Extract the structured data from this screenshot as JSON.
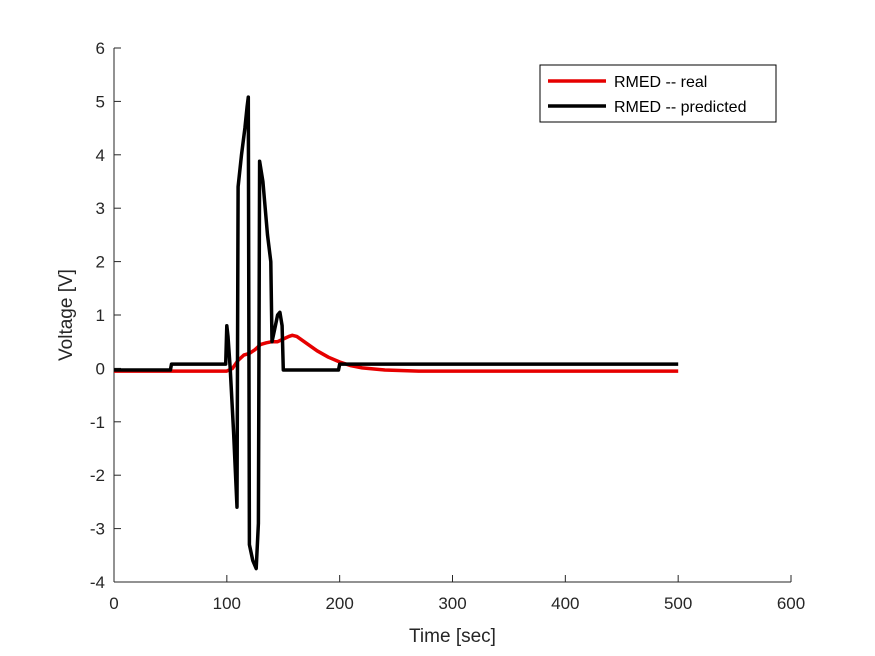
{
  "chart_data": {
    "type": "line",
    "xlabel": "Time [sec]",
    "ylabel": "Voltage [V]",
    "xlim": [
      0,
      600
    ],
    "ylim": [
      -4,
      6
    ],
    "xticks": [
      0,
      100,
      200,
      300,
      400,
      500,
      600
    ],
    "yticks": [
      -4,
      -3,
      -2,
      -1,
      0,
      1,
      2,
      3,
      4,
      5,
      6
    ],
    "xtick_labels": [
      "0",
      "100",
      "200",
      "300",
      "400",
      "500",
      "600"
    ],
    "ytick_labels": [
      "-4",
      "-3",
      "-2",
      "-1",
      "0",
      "1",
      "2",
      "3",
      "4",
      "5",
      "6"
    ],
    "grid": false,
    "legend": {
      "placement": "top-right",
      "entries": [
        "RMED -- real",
        "RMED -- predicted"
      ]
    },
    "series": [
      {
        "name": "RMED -- real",
        "color": "#e60000",
        "points": [
          [
            0,
            -0.05
          ],
          [
            100,
            -0.05
          ],
          [
            105,
            0.0
          ],
          [
            110,
            0.15
          ],
          [
            115,
            0.25
          ],
          [
            120,
            0.28
          ],
          [
            125,
            0.35
          ],
          [
            130,
            0.45
          ],
          [
            135,
            0.48
          ],
          [
            140,
            0.5
          ],
          [
            145,
            0.5
          ],
          [
            150,
            0.55
          ],
          [
            155,
            0.6
          ],
          [
            158,
            0.62
          ],
          [
            162,
            0.6
          ],
          [
            170,
            0.48
          ],
          [
            180,
            0.33
          ],
          [
            190,
            0.21
          ],
          [
            200,
            0.12
          ],
          [
            210,
            0.05
          ],
          [
            220,
            0.01
          ],
          [
            240,
            -0.03
          ],
          [
            270,
            -0.05
          ],
          [
            300,
            -0.05
          ],
          [
            500,
            -0.05
          ]
        ]
      },
      {
        "name": "RMED -- predicted",
        "color": "#000000",
        "points": [
          [
            0,
            -0.03
          ],
          [
            50,
            -0.03
          ],
          [
            51,
            0.08
          ],
          [
            99,
            0.08
          ],
          [
            100,
            0.8
          ],
          [
            101,
            0.6
          ],
          [
            103,
            0.0
          ],
          [
            106,
            -1.2
          ],
          [
            109,
            -2.6
          ],
          [
            110,
            3.4
          ],
          [
            113,
            4.0
          ],
          [
            116,
            4.5
          ],
          [
            118,
            4.9
          ],
          [
            119,
            5.08
          ],
          [
            120,
            -3.3
          ],
          [
            123,
            -3.6
          ],
          [
            126,
            -3.75
          ],
          [
            128,
            -2.9
          ],
          [
            129,
            3.88
          ],
          [
            132,
            3.5
          ],
          [
            136,
            2.5
          ],
          [
            139,
            2.0
          ],
          [
            140,
            0.5
          ],
          [
            143,
            0.8
          ],
          [
            145,
            1.0
          ],
          [
            147,
            1.05
          ],
          [
            149,
            0.8
          ],
          [
            150,
            -0.03
          ],
          [
            199,
            -0.03
          ],
          [
            200,
            0.08
          ],
          [
            500,
            0.08
          ]
        ]
      }
    ]
  }
}
